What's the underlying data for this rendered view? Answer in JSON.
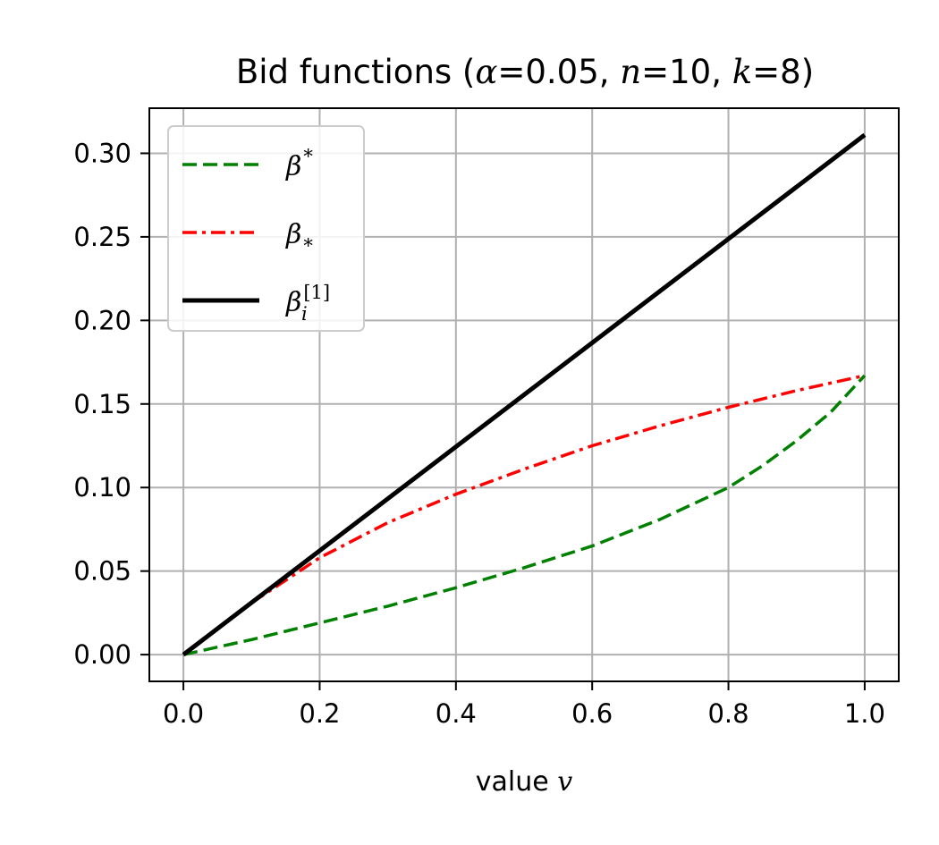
{
  "chart_data": {
    "type": "line",
    "title": "Bid functions (α=0.05, n=10, k=8)",
    "title_parts": {
      "prefix": "Bid functions (",
      "alpha_sym": "α",
      "alpha_val": "=0.05, ",
      "n_sym": "n",
      "n_val": "=10, ",
      "k_sym": "k",
      "k_val": "=8)"
    },
    "xlabel": "value v",
    "xlabel_parts": {
      "text": "value ",
      "var": "v"
    },
    "ylabel": "",
    "xlim": [
      -0.05,
      1.05
    ],
    "ylim": [
      -0.016,
      0.327
    ],
    "xticks": [
      0.0,
      0.2,
      0.4,
      0.6,
      0.8,
      1.0
    ],
    "xtick_labels": [
      "0.0",
      "0.2",
      "0.4",
      "0.6",
      "0.8",
      "1.0"
    ],
    "yticks": [
      0.0,
      0.05,
      0.1,
      0.15,
      0.2,
      0.25,
      0.3
    ],
    "ytick_labels": [
      "0.00",
      "0.05",
      "0.10",
      "0.15",
      "0.20",
      "0.25",
      "0.30"
    ],
    "grid": true,
    "legend_position": "top-left",
    "series": [
      {
        "name": "β*",
        "label_base": "β",
        "label_sup": "*",
        "label_sub": "",
        "color": "#008000",
        "style": "dashed",
        "x": [
          0.0,
          0.1,
          0.2,
          0.3,
          0.4,
          0.5,
          0.6,
          0.7,
          0.8,
          0.85,
          0.9,
          0.95,
          1.0
        ],
        "y": [
          0.0,
          0.009,
          0.019,
          0.029,
          0.04,
          0.052,
          0.065,
          0.081,
          0.1,
          0.113,
          0.128,
          0.145,
          0.167
        ]
      },
      {
        "name": "β_*",
        "label_base": "β",
        "label_sup": "",
        "label_sub": "*",
        "color": "#ff0000",
        "style": "dashdot",
        "x": [
          0.0,
          0.1,
          0.2,
          0.3,
          0.4,
          0.5,
          0.6,
          0.7,
          0.8,
          0.9,
          1.0
        ],
        "y": [
          0.0,
          0.031,
          0.058,
          0.079,
          0.096,
          0.111,
          0.125,
          0.137,
          0.148,
          0.158,
          0.167
        ]
      },
      {
        "name": "β_i^[1]",
        "label_base": "β",
        "label_sup": "[1]",
        "label_sub": "i",
        "color": "#000000",
        "style": "solid",
        "x": [
          0.0,
          1.0
        ],
        "y": [
          0.0,
          0.311
        ]
      }
    ]
  }
}
